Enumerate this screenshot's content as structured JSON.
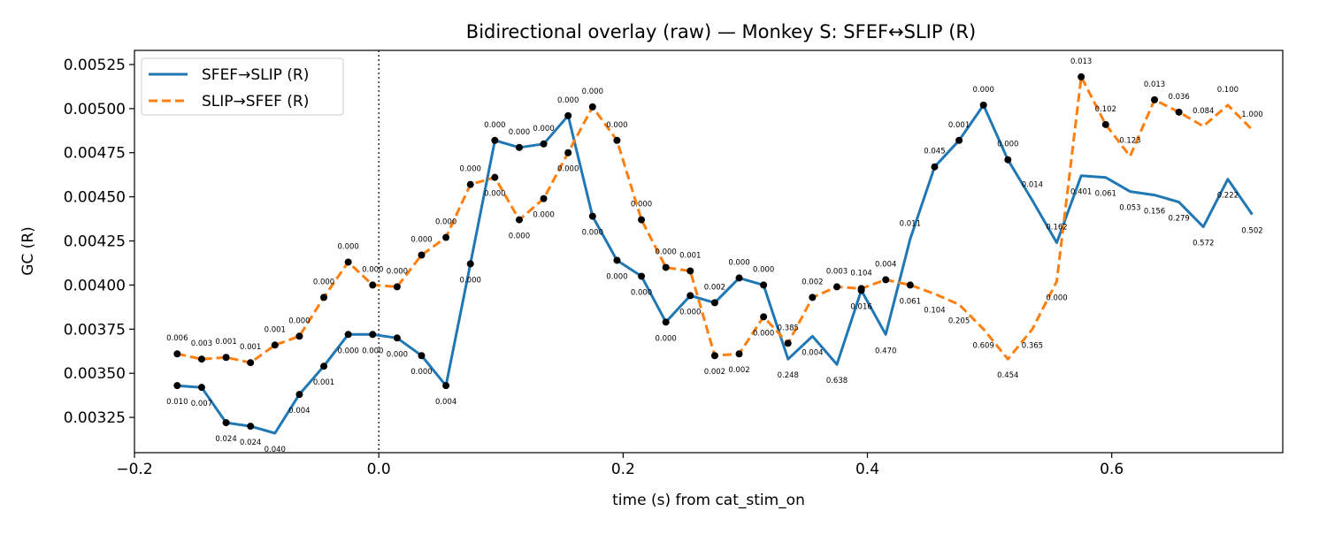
{
  "chart_data": {
    "type": "line",
    "title": "Bidirectional overlay (raw) — Monkey S: SFEF↔SLIP (R)",
    "xlabel": "time (s) from cat_stim_on",
    "ylabel": "GC (R)",
    "xlim": [
      -0.2,
      0.74
    ],
    "ylim": [
      0.00305,
      0.00533
    ],
    "xticks": [
      -0.2,
      0.0,
      0.2,
      0.4,
      0.6
    ],
    "xtick_labels": [
      "−0.2",
      "0.0",
      "0.2",
      "0.4",
      "0.6"
    ],
    "yticks": [
      0.00325,
      0.0035,
      0.00375,
      0.004,
      0.00425,
      0.0045,
      0.00475,
      0.005,
      0.00525
    ],
    "ytick_labels": [
      "0.00325",
      "0.00350",
      "0.00375",
      "0.00400",
      "0.00425",
      "0.00450",
      "0.00475",
      "0.00500",
      "0.00525"
    ],
    "vline_x": 0.0,
    "grid": false,
    "legend_position": "upper-left",
    "colors": {
      "series0": "#1f77b4",
      "series1": "#ff7f0e",
      "markers": "#000000"
    },
    "x": [
      -0.165,
      -0.145,
      -0.125,
      -0.105,
      -0.085,
      -0.065,
      -0.045,
      -0.025,
      -0.005,
      0.015,
      0.035,
      0.055,
      0.075,
      0.095,
      0.115,
      0.135,
      0.155,
      0.175,
      0.195,
      0.215,
      0.235,
      0.255,
      0.275,
      0.295,
      0.315,
      0.335,
      0.355,
      0.375,
      0.395,
      0.415,
      0.435,
      0.455,
      0.475,
      0.495,
      0.515,
      0.535,
      0.555,
      0.575,
      0.595,
      0.615,
      0.635,
      0.655,
      0.675,
      0.695,
      0.715
    ],
    "series": [
      {
        "name": "SFEF→SLIP (R)",
        "style": "solid",
        "values": [
          0.00343,
          0.00342,
          0.00322,
          0.0032,
          0.00316,
          0.00338,
          0.00354,
          0.00372,
          0.00372,
          0.0037,
          0.0036,
          0.00343,
          0.00412,
          0.00482,
          0.00478,
          0.0048,
          0.00496,
          0.00439,
          0.00414,
          0.00405,
          0.00379,
          0.00394,
          0.0039,
          0.00404,
          0.004,
          0.00358,
          0.00371,
          0.00355,
          0.00397,
          0.00372,
          0.00426,
          0.00467,
          0.00482,
          0.00502,
          0.00471,
          0.00448,
          0.00424,
          0.00462,
          0.00461,
          0.00453,
          0.00451,
          0.00447,
          0.00433,
          0.0046,
          0.0044
        ],
        "markers": [
          0,
          1,
          2,
          3,
          5,
          6,
          7,
          8,
          9,
          10,
          11,
          12,
          13,
          14,
          15,
          16,
          17,
          18,
          19,
          20,
          21,
          22,
          23,
          24,
          28,
          31,
          32,
          33,
          34
        ],
        "labels": [
          "0.010",
          "0.007",
          "0.024",
          "0.024",
          "0.040",
          "0.004",
          "0.001",
          "0.000",
          "0.000",
          "0.000",
          "0.000",
          "0.004",
          "0.000",
          "0.000",
          "0.000",
          "0.000",
          "0.000",
          "0.000",
          "0.000",
          "0.000",
          "0.000",
          "0.000",
          "0.002",
          "0.000",
          "0.000",
          "0.248",
          "0.004",
          "0.638",
          "0.016",
          "0.470",
          "0.011",
          "0.045",
          "0.001",
          "0.000",
          "0.000",
          "0.014",
          "0.162",
          "0.401",
          "0.061",
          "0.053",
          "0.156",
          "0.279",
          "0.572",
          "0.222",
          "0.502"
        ]
      },
      {
        "name": "SLIP→SFEF (R)",
        "style": "dashed",
        "values": [
          0.00361,
          0.00358,
          0.00359,
          0.00356,
          0.00366,
          0.00371,
          0.00393,
          0.00413,
          0.004,
          0.00399,
          0.00417,
          0.00427,
          0.00457,
          0.00461,
          0.00437,
          0.00449,
          0.00475,
          0.00501,
          0.00482,
          0.00437,
          0.0041,
          0.00408,
          0.0036,
          0.00361,
          0.00382,
          0.00367,
          0.00393,
          0.00399,
          0.00398,
          0.00403,
          0.004,
          0.00395,
          0.00389,
          0.00375,
          0.00358,
          0.00375,
          0.00402,
          0.00518,
          0.00491,
          0.00473,
          0.00505,
          0.00498,
          0.0049,
          0.00502,
          0.00488
        ],
        "markers": [
          0,
          1,
          2,
          3,
          4,
          5,
          6,
          7,
          8,
          9,
          10,
          11,
          12,
          13,
          14,
          15,
          16,
          17,
          18,
          19,
          20,
          21,
          22,
          23,
          24,
          25,
          26,
          27,
          28,
          29,
          30,
          37,
          38,
          40,
          41
        ],
        "labels": [
          "0.006",
          "0.003",
          "0.001",
          "0.001",
          "0.001",
          "0.000",
          "0.000",
          "0.000",
          "0.000",
          "0.000",
          "0.000",
          "0.000",
          "0.000",
          "0.000",
          "0.000",
          "0.000",
          "0.000",
          "0.000",
          "0.000",
          "0.000",
          "0.000",
          "0.001",
          "0.002",
          "0.002",
          "0.000",
          "0.385",
          "0.002",
          "0.003",
          "0.104",
          "0.004",
          "0.061",
          "0.104",
          "0.205",
          "0.609",
          "0.454",
          "0.365",
          "0.000",
          "0.013",
          "0.102",
          "0.123",
          "0.013",
          "0.036",
          "0.084",
          "0.100",
          "1.000"
        ]
      }
    ]
  }
}
